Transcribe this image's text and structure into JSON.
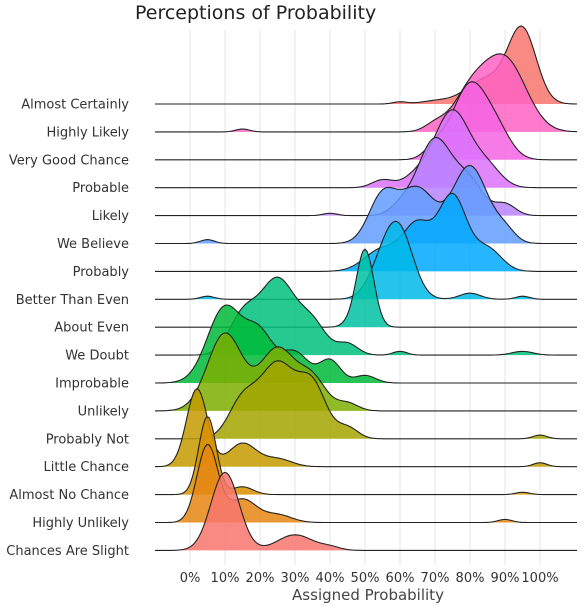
{
  "chart_data": {
    "type": "ridgeline",
    "title": "Perceptions of Probability",
    "xlabel": "Assigned Probability",
    "ylabel": "",
    "xlim": [
      -10,
      110
    ],
    "x_ticks": [
      "0%",
      "10%",
      "20%",
      "30%",
      "40%",
      "50%",
      "60%",
      "70%",
      "80%",
      "90%",
      "100%"
    ],
    "x_tick_values": [
      0,
      10,
      20,
      30,
      40,
      50,
      60,
      70,
      80,
      90,
      100
    ],
    "grid": true,
    "series": [
      {
        "name": "Almost Certainly",
        "color": "#F8766D",
        "peaks": [
          [
            95,
            4,
            1.0
          ],
          [
            85,
            6,
            0.35
          ],
          [
            70,
            4,
            0.04
          ],
          [
            60,
            2,
            0.03
          ]
        ]
      },
      {
        "name": "Highly Likely",
        "color": "#FF61C3",
        "peaks": [
          [
            90,
            6,
            1.0
          ],
          [
            80,
            5,
            0.5
          ],
          [
            70,
            3,
            0.1
          ],
          [
            15,
            2,
            0.04
          ]
        ]
      },
      {
        "name": "Very Good Chance",
        "color": "#F564E3",
        "peaks": [
          [
            80,
            5,
            1.0
          ],
          [
            88,
            4,
            0.3
          ],
          [
            70,
            3,
            0.15
          ]
        ]
      },
      {
        "name": "Probable",
        "color": "#DB72FB",
        "peaks": [
          [
            75,
            5,
            1.0
          ],
          [
            85,
            4,
            0.25
          ],
          [
            65,
            4,
            0.15
          ],
          [
            55,
            3,
            0.1
          ]
        ]
      },
      {
        "name": "Likely",
        "color": "#B983FF",
        "peaks": [
          [
            70,
            5,
            1.0
          ],
          [
            80,
            4,
            0.4
          ],
          [
            90,
            3,
            0.15
          ],
          [
            60,
            3,
            0.1
          ],
          [
            40,
            2,
            0.03
          ]
        ]
      },
      {
        "name": "We Believe",
        "color": "#619CFF",
        "peaks": [
          [
            80,
            5,
            1.0
          ],
          [
            65,
            5,
            0.7
          ],
          [
            55,
            4,
            0.6
          ],
          [
            90,
            3,
            0.15
          ],
          [
            5,
            2,
            0.05
          ]
        ]
      },
      {
        "name": "Probably",
        "color": "#00A9FF",
        "peaks": [
          [
            75,
            4,
            1.0
          ],
          [
            65,
            4,
            0.6
          ],
          [
            55,
            5,
            0.3
          ],
          [
            85,
            4,
            0.3
          ]
        ]
      },
      {
        "name": "Better Than Even",
        "color": "#00B8E7",
        "peaks": [
          [
            60,
            4,
            1.0
          ],
          [
            55,
            4,
            0.5
          ],
          [
            80,
            3,
            0.1
          ],
          [
            95,
            2,
            0.05
          ],
          [
            5,
            2,
            0.05
          ]
        ]
      },
      {
        "name": "About Even",
        "color": "#00C1A3",
        "peaks": [
          [
            50,
            2.5,
            1.0
          ],
          [
            45,
            2,
            0.03
          ]
        ]
      },
      {
        "name": "We Doubt",
        "color": "#00BF7D",
        "peaks": [
          [
            25,
            5,
            1.0
          ],
          [
            15,
            4,
            0.5
          ],
          [
            35,
            4,
            0.4
          ],
          [
            45,
            3,
            0.15
          ],
          [
            60,
            2,
            0.05
          ],
          [
            95,
            3,
            0.05
          ]
        ]
      },
      {
        "name": "Improbable",
        "color": "#00BA38",
        "peaks": [
          [
            10,
            5,
            1.0
          ],
          [
            20,
            4,
            0.6
          ],
          [
            30,
            4,
            0.4
          ],
          [
            40,
            3,
            0.3
          ],
          [
            50,
            3,
            0.1
          ]
        ]
      },
      {
        "name": "Unlikely",
        "color": "#7CAE00",
        "peaks": [
          [
            10,
            5,
            1.0
          ],
          [
            25,
            5,
            0.8
          ],
          [
            35,
            4,
            0.4
          ],
          [
            45,
            3,
            0.1
          ]
        ]
      },
      {
        "name": "Probably Not",
        "color": "#A3A500",
        "peaks": [
          [
            25,
            5,
            1.0
          ],
          [
            35,
            4,
            0.7
          ],
          [
            15,
            4,
            0.5
          ],
          [
            45,
            3,
            0.15
          ],
          [
            100,
            2,
            0.05
          ]
        ]
      },
      {
        "name": "Little Chance",
        "color": "#C49A00",
        "peaks": [
          [
            2,
            3,
            1.0
          ],
          [
            15,
            4,
            0.3
          ],
          [
            25,
            4,
            0.1
          ],
          [
            100,
            2,
            0.05
          ]
        ]
      },
      {
        "name": "Almost No Chance",
        "color": "#D89000",
        "peaks": [
          [
            5,
            2.5,
            1.0
          ],
          [
            15,
            3,
            0.1
          ],
          [
            95,
            2,
            0.03
          ]
        ]
      },
      {
        "name": "Highly Unlikely",
        "color": "#E68613",
        "peaks": [
          [
            5,
            3,
            1.0
          ],
          [
            15,
            4,
            0.3
          ],
          [
            25,
            4,
            0.1
          ],
          [
            90,
            2,
            0.04
          ]
        ]
      },
      {
        "name": "Chances Are Slight",
        "color": "#F8766D",
        "peaks": [
          [
            10,
            4,
            1.0
          ],
          [
            30,
            5,
            0.2
          ],
          [
            40,
            3,
            0.04
          ]
        ]
      }
    ]
  }
}
